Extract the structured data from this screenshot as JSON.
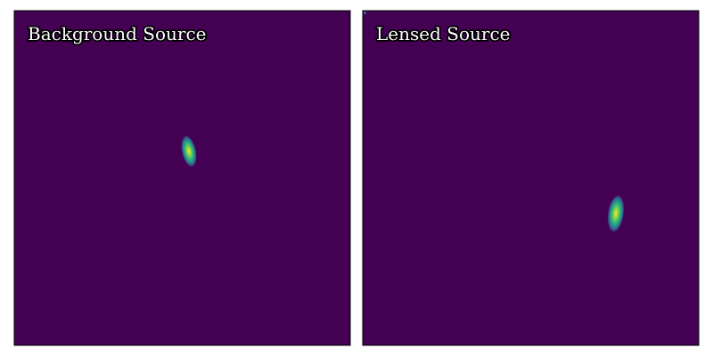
{
  "panels": [
    {
      "title": "Background Source"
    },
    {
      "title": "Lensed Source"
    }
  ]
}
